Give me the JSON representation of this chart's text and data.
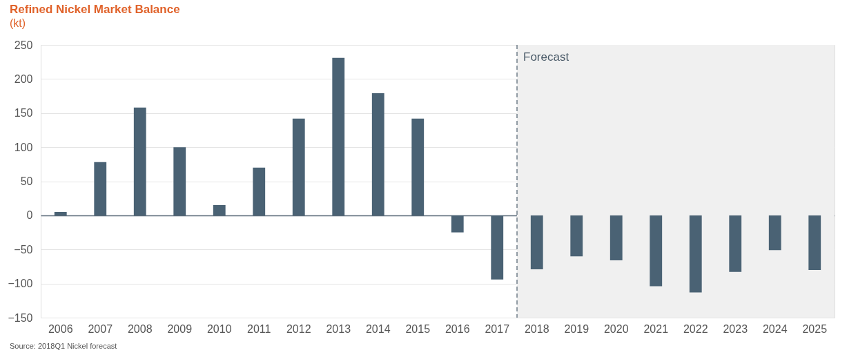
{
  "chart_data": {
    "type": "bar",
    "title": "Refined Nickel Market Balance",
    "subtitle": "(kt)",
    "categories": [
      "2006",
      "2007",
      "2008",
      "2009",
      "2010",
      "2011",
      "2012",
      "2013",
      "2014",
      "2015",
      "2016",
      "2017",
      "2018",
      "2019",
      "2020",
      "2021",
      "2022",
      "2023",
      "2024",
      "2025"
    ],
    "values": [
      5,
      78,
      158,
      100,
      15,
      70,
      142,
      231,
      179,
      142,
      -25,
      -94,
      -79,
      -60,
      -66,
      -104,
      -113,
      -83,
      -51,
      -80
    ],
    "color": "#4a6274",
    "ylim": [
      -150,
      250
    ],
    "yticks": [
      -150,
      -100,
      -50,
      0,
      50,
      100,
      150,
      200,
      250
    ],
    "grid": "y",
    "bands": [
      {
        "axis": "x",
        "from": "2018",
        "to": "2025",
        "label": "Forecast",
        "color": "#f0f0f0"
      }
    ],
    "ref_lines": [
      {
        "axis": "x",
        "value": "2018",
        "color": "#5a6a78",
        "line_style": "dashed"
      }
    ],
    "annotations": [
      "Source: 2018Q1 Nickel forecast"
    ]
  }
}
